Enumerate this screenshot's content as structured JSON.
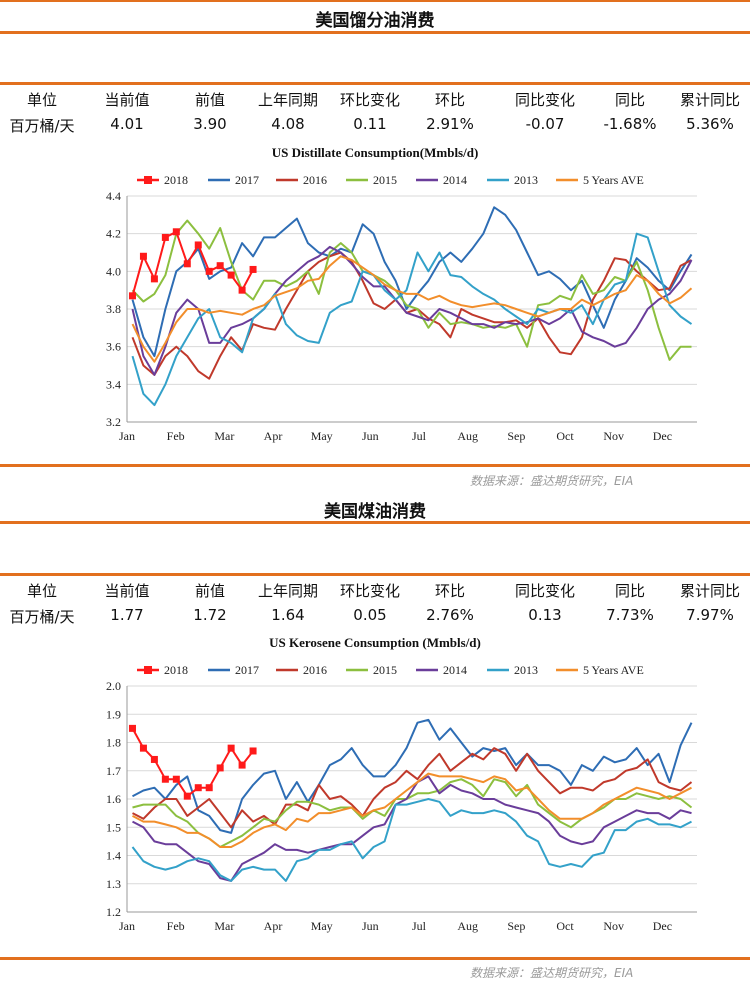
{
  "header_bar_top": "",
  "colors": {
    "accent_rule": "#e2701e",
    "2018": "#ff1a1a",
    "2017": "#2e6db4",
    "2016": "#c0392b",
    "2015": "#8cbf3f",
    "2014": "#6a3d9a",
    "2013": "#33a1c9",
    "5 Years AVE": "#f28e2b"
  },
  "table_headers": [
    "单位",
    "当前值",
    "前值",
    "上年同期",
    "环比变化",
    "环比",
    "同比变化",
    "同比",
    "累计同比"
  ],
  "sections": [
    {
      "title": "美国馏分油消费",
      "row": [
        "百万桶/天",
        "4.01",
        "3.90",
        "4.08",
        "0.11",
        "2.91%",
        "-0.07",
        "-1.68%",
        "5.36%"
      ],
      "source": "数据来源：盛达期货研究，EIA",
      "chart_data": {
        "type": "line",
        "title": "US Distillate Consumption(Mmbls/d)",
        "ylim": [
          3.2,
          4.4
        ],
        "yticks": [
          "3.2",
          "3.4",
          "3.6",
          "3.8",
          "4.0",
          "4.2",
          "4.4"
        ],
        "month_labels": [
          "Jan",
          "Feb",
          "Mar",
          "Apr",
          "May",
          "Jun",
          "Jul",
          "Aug",
          "Sep",
          "Oct",
          "Nov",
          "Dec"
        ],
        "x_weeks": 52,
        "grid": true,
        "legend_position": "top",
        "legend": [
          "2018",
          "2017",
          "2016",
          "2015",
          "2014",
          "2013",
          "5 Years AVE"
        ],
        "series": [
          {
            "name": "2018",
            "marker": "square",
            "values": [
              3.87,
              4.08,
              3.96,
              4.18,
              4.21,
              4.04,
              4.14,
              4.0,
              4.03,
              3.98,
              3.9,
              4.01
            ]
          },
          {
            "name": "2017",
            "values": [
              3.85,
              3.65,
              3.55,
              3.8,
              4.0,
              4.05,
              4.12,
              3.96,
              4.0,
              4.02,
              4.15,
              4.08,
              4.18,
              4.18,
              4.23,
              4.28,
              4.15,
              4.1,
              4.08,
              4.12,
              4.1,
              4.25,
              4.2,
              4.05,
              3.95,
              3.8,
              3.88,
              3.95,
              4.05,
              4.1,
              4.05,
              4.12,
              4.2,
              4.34,
              4.3,
              4.22,
              4.1,
              3.98,
              4.0,
              3.96,
              3.9,
              3.95,
              3.82,
              3.7,
              3.85,
              3.95,
              4.07,
              4.02,
              3.95,
              3.9,
              4.0,
              4.09
            ]
          },
          {
            "name": "2016",
            "values": [
              3.65,
              3.5,
              3.45,
              3.55,
              3.6,
              3.55,
              3.47,
              3.43,
              3.55,
              3.65,
              3.58,
              3.72,
              3.7,
              3.69,
              3.8,
              3.9,
              4.0,
              4.05,
              4.08,
              4.1,
              4.05,
              3.95,
              3.83,
              3.8,
              3.85,
              3.78,
              3.8,
              3.75,
              3.72,
              3.65,
              3.8,
              3.77,
              3.75,
              3.73,
              3.73,
              3.74,
              3.7,
              3.75,
              3.65,
              3.57,
              3.56,
              3.65,
              3.85,
              3.95,
              4.07,
              4.06,
              4.0,
              3.95,
              3.9,
              3.91,
              4.03,
              4.06
            ]
          },
          {
            "name": "2015",
            "values": [
              3.9,
              3.84,
              3.88,
              3.98,
              4.2,
              4.27,
              4.2,
              4.12,
              4.23,
              4.05,
              3.9,
              3.85,
              3.95,
              3.95,
              3.92,
              3.95,
              4.0,
              3.88,
              4.1,
              4.15,
              4.1,
              4.0,
              3.98,
              3.95,
              3.9,
              3.82,
              3.8,
              3.7,
              3.78,
              3.72,
              3.73,
              3.72,
              3.7,
              3.71,
              3.7,
              3.72,
              3.6,
              3.82,
              3.83,
              3.87,
              3.85,
              3.98,
              3.88,
              3.9,
              3.97,
              3.95,
              4.05,
              3.9,
              3.7,
              3.53,
              3.6,
              3.6
            ]
          },
          {
            "name": "2014",
            "values": [
              3.8,
              3.55,
              3.45,
              3.6,
              3.78,
              3.85,
              3.8,
              3.62,
              3.62,
              3.7,
              3.72,
              3.75,
              3.8,
              3.88,
              3.95,
              4.0,
              4.05,
              4.08,
              4.13,
              4.1,
              4.04,
              3.97,
              3.92,
              3.92,
              3.85,
              3.78,
              3.76,
              3.74,
              3.8,
              3.78,
              3.75,
              3.72,
              3.72,
              3.7,
              3.73,
              3.72,
              3.73,
              3.75,
              3.72,
              3.75,
              3.8,
              3.68,
              3.65,
              3.63,
              3.6,
              3.62,
              3.7,
              3.8,
              3.85,
              3.88,
              3.95,
              4.06
            ]
          },
          {
            "name": "2013",
            "values": [
              3.55,
              3.35,
              3.29,
              3.4,
              3.55,
              3.65,
              3.75,
              3.8,
              3.65,
              3.62,
              3.57,
              3.75,
              3.8,
              3.88,
              3.72,
              3.66,
              3.63,
              3.62,
              3.78,
              3.82,
              3.84,
              4.0,
              3.98,
              3.9,
              3.85,
              3.9,
              4.1,
              4.0,
              4.1,
              3.98,
              3.97,
              3.92,
              3.88,
              3.85,
              3.8,
              3.76,
              3.72,
              3.8,
              3.78,
              3.8,
              3.78,
              3.82,
              3.72,
              3.85,
              3.93,
              3.95,
              4.2,
              4.18,
              4.0,
              3.82,
              3.76,
              3.72
            ]
          },
          {
            "name": "5 Years AVE",
            "values": [
              3.72,
              3.6,
              3.52,
              3.62,
              3.73,
              3.8,
              3.8,
              3.78,
              3.79,
              3.78,
              3.77,
              3.8,
              3.82,
              3.87,
              3.89,
              3.91,
              3.95,
              3.96,
              4.03,
              4.08,
              4.06,
              4.02,
              3.98,
              3.93,
              3.9,
              3.88,
              3.88,
              3.85,
              3.87,
              3.84,
              3.82,
              3.81,
              3.82,
              3.83,
              3.82,
              3.8,
              3.78,
              3.76,
              3.78,
              3.8,
              3.8,
              3.85,
              3.82,
              3.85,
              3.88,
              3.9,
              3.98,
              3.95,
              3.88,
              3.83,
              3.86,
              3.91
            ]
          }
        ]
      }
    },
    {
      "title": "美国煤油消费",
      "row": [
        "百万桶/天",
        "1.77",
        "1.72",
        "1.64",
        "0.05",
        "2.76%",
        "0.13",
        "7.73%",
        "7.97%"
      ],
      "source": "数据来源：盛达期货研究，EIA",
      "chart_data": {
        "type": "line",
        "title": "US Kerosene Consumption (Mmbls/d)",
        "ylim": [
          1.2,
          2.0
        ],
        "yticks": [
          "1.2",
          "1.3",
          "1.4",
          "1.5",
          "1.6",
          "1.7",
          "1.8",
          "1.9",
          "2.0"
        ],
        "month_labels": [
          "Jan",
          "Feb",
          "Mar",
          "Apr",
          "May",
          "Jun",
          "Jul",
          "Aug",
          "Sep",
          "Oct",
          "Nov",
          "Dec"
        ],
        "x_weeks": 52,
        "grid": true,
        "legend_position": "top",
        "legend": [
          "2018",
          "2017",
          "2016",
          "2015",
          "2014",
          "2013",
          "5 Years AVE"
        ],
        "series": [
          {
            "name": "2018",
            "marker": "square",
            "values": [
              1.85,
              1.78,
              1.74,
              1.67,
              1.67,
              1.61,
              1.64,
              1.64,
              1.71,
              1.78,
              1.72,
              1.77
            ]
          },
          {
            "name": "2017",
            "values": [
              1.61,
              1.63,
              1.64,
              1.6,
              1.65,
              1.68,
              1.56,
              1.54,
              1.49,
              1.48,
              1.6,
              1.65,
              1.69,
              1.7,
              1.6,
              1.66,
              1.59,
              1.65,
              1.72,
              1.74,
              1.78,
              1.72,
              1.68,
              1.68,
              1.72,
              1.78,
              1.87,
              1.88,
              1.81,
              1.85,
              1.8,
              1.75,
              1.78,
              1.77,
              1.78,
              1.72,
              1.76,
              1.72,
              1.72,
              1.7,
              1.65,
              1.72,
              1.7,
              1.75,
              1.73,
              1.74,
              1.78,
              1.72,
              1.76,
              1.66,
              1.79,
              1.87
            ]
          },
          {
            "name": "2016",
            "values": [
              1.55,
              1.53,
              1.57,
              1.6,
              1.6,
              1.54,
              1.57,
              1.6,
              1.55,
              1.5,
              1.56,
              1.52,
              1.54,
              1.51,
              1.58,
              1.58,
              1.56,
              1.65,
              1.6,
              1.61,
              1.58,
              1.54,
              1.6,
              1.64,
              1.66,
              1.7,
              1.67,
              1.72,
              1.76,
              1.7,
              1.73,
              1.76,
              1.74,
              1.78,
              1.76,
              1.7,
              1.76,
              1.7,
              1.66,
              1.62,
              1.64,
              1.64,
              1.63,
              1.66,
              1.67,
              1.7,
              1.71,
              1.74,
              1.66,
              1.64,
              1.63,
              1.66
            ]
          },
          {
            "name": "2015",
            "values": [
              1.57,
              1.58,
              1.58,
              1.58,
              1.54,
              1.52,
              1.48,
              1.46,
              1.43,
              1.45,
              1.47,
              1.5,
              1.53,
              1.52,
              1.56,
              1.59,
              1.59,
              1.58,
              1.56,
              1.57,
              1.57,
              1.53,
              1.56,
              1.54,
              1.6,
              1.6,
              1.62,
              1.62,
              1.63,
              1.66,
              1.67,
              1.65,
              1.61,
              1.67,
              1.66,
              1.61,
              1.65,
              1.58,
              1.55,
              1.52,
              1.5,
              1.53,
              1.55,
              1.57,
              1.6,
              1.6,
              1.62,
              1.61,
              1.6,
              1.61,
              1.6,
              1.57
            ]
          },
          {
            "name": "2014",
            "values": [
              1.52,
              1.5,
              1.45,
              1.44,
              1.44,
              1.41,
              1.38,
              1.37,
              1.32,
              1.31,
              1.37,
              1.39,
              1.41,
              1.44,
              1.42,
              1.42,
              1.41,
              1.42,
              1.43,
              1.44,
              1.44,
              1.47,
              1.5,
              1.51,
              1.58,
              1.6,
              1.66,
              1.68,
              1.62,
              1.65,
              1.63,
              1.62,
              1.6,
              1.6,
              1.58,
              1.57,
              1.56,
              1.55,
              1.52,
              1.47,
              1.45,
              1.44,
              1.45,
              1.5,
              1.52,
              1.54,
              1.56,
              1.55,
              1.55,
              1.53,
              1.56,
              1.55
            ]
          },
          {
            "name": "2013",
            "values": [
              1.43,
              1.38,
              1.36,
              1.35,
              1.36,
              1.38,
              1.39,
              1.38,
              1.33,
              1.31,
              1.35,
              1.36,
              1.35,
              1.35,
              1.31,
              1.38,
              1.39,
              1.42,
              1.42,
              1.44,
              1.45,
              1.39,
              1.43,
              1.45,
              1.58,
              1.58,
              1.59,
              1.6,
              1.59,
              1.54,
              1.56,
              1.55,
              1.55,
              1.56,
              1.55,
              1.52,
              1.47,
              1.45,
              1.37,
              1.36,
              1.37,
              1.36,
              1.4,
              1.41,
              1.49,
              1.49,
              1.52,
              1.53,
              1.51,
              1.51,
              1.5,
              1.52
            ]
          },
          {
            "name": "5 Years AVE",
            "values": [
              1.54,
              1.52,
              1.52,
              1.51,
              1.5,
              1.48,
              1.48,
              1.46,
              1.43,
              1.43,
              1.45,
              1.48,
              1.5,
              1.51,
              1.49,
              1.53,
              1.52,
              1.55,
              1.55,
              1.56,
              1.57,
              1.54,
              1.56,
              1.57,
              1.6,
              1.63,
              1.66,
              1.69,
              1.68,
              1.68,
              1.68,
              1.67,
              1.66,
              1.68,
              1.67,
              1.63,
              1.64,
              1.6,
              1.56,
              1.53,
              1.53,
              1.53,
              1.55,
              1.58,
              1.6,
              1.62,
              1.64,
              1.63,
              1.62,
              1.6,
              1.62,
              1.64
            ]
          }
        ]
      }
    }
  ]
}
